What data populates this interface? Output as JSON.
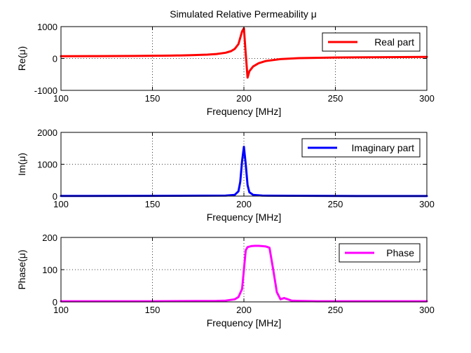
{
  "figure": {
    "title": "Simulated Relative Permeability μ"
  },
  "chart_data": [
    {
      "type": "line",
      "xlabel": "Frequency [MHz]",
      "ylabel": "Re(μ)",
      "xlim": [
        100,
        300
      ],
      "ylim": [
        -1000,
        1000
      ],
      "xticks": [
        100,
        150,
        200,
        250,
        300
      ],
      "yticks": [
        -1000,
        0,
        1000
      ],
      "grid": true,
      "legend_position": "top-right",
      "series": [
        {
          "name": "Real part",
          "color": "#ff0000",
          "x": [
            100,
            120,
            140,
            160,
            170,
            180,
            185,
            190,
            193,
            195,
            197,
            198,
            199,
            200,
            201,
            202,
            203,
            205,
            208,
            212,
            220,
            230,
            250,
            270,
            300
          ],
          "y": [
            70,
            75,
            80,
            90,
            100,
            120,
            140,
            180,
            230,
            300,
            450,
            650,
            850,
            950,
            150,
            -600,
            -400,
            -250,
            -150,
            -80,
            -20,
            10,
            30,
            40,
            50
          ]
        }
      ]
    },
    {
      "type": "line",
      "xlabel": "Frequency [MHz]",
      "ylabel": "Im(μ)",
      "xlim": [
        100,
        300
      ],
      "ylim": [
        0,
        2000
      ],
      "xticks": [
        100,
        150,
        200,
        250,
        300
      ],
      "yticks": [
        0,
        1000,
        2000
      ],
      "grid": true,
      "legend_position": "top-right",
      "series": [
        {
          "name": "Imaginary part",
          "color": "#0000ff",
          "x": [
            100,
            150,
            190,
            195,
            197,
            198,
            199,
            200,
            201,
            202,
            203,
            205,
            210,
            250,
            300
          ],
          "y": [
            5,
            8,
            15,
            40,
            150,
            450,
            1100,
            1550,
            1000,
            350,
            120,
            40,
            15,
            5,
            3
          ]
        }
      ]
    },
    {
      "type": "line",
      "xlabel": "Frequency [MHz]",
      "ylabel": "Phase(μ)",
      "xlim": [
        100,
        300
      ],
      "ylim": [
        0,
        200
      ],
      "xticks": [
        100,
        150,
        200,
        250,
        300
      ],
      "yticks": [
        0,
        100,
        200
      ],
      "grid": true,
      "legend_position": "top-right",
      "series": [
        {
          "name": "Phase",
          "color": "#ff00ff",
          "x": [
            100,
            150,
            185,
            190,
            195,
            197,
            199,
            200,
            201,
            202,
            204,
            206,
            208,
            210,
            212,
            214,
            216,
            218,
            220,
            222,
            224,
            226,
            230,
            240,
            250,
            300
          ],
          "y": [
            2,
            2,
            3,
            4,
            8,
            15,
            40,
            100,
            160,
            170,
            173,
            174,
            174,
            173,
            172,
            168,
            100,
            30,
            8,
            12,
            8,
            4,
            3,
            2,
            2,
            2
          ]
        }
      ]
    }
  ]
}
